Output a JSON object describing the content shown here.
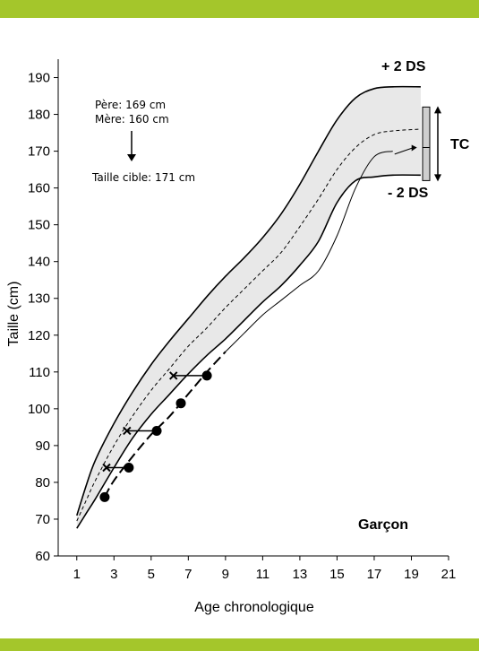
{
  "colors": {
    "band": "#a4c62b",
    "envelope": "#e8e8e8"
  },
  "chart_data": {
    "type": "line",
    "title": "",
    "xlabel": "Age chronologique",
    "ylabel": "Taille (cm)",
    "xlim": [
      0,
      21
    ],
    "ylim": [
      60,
      195
    ],
    "xticks": [
      1,
      3,
      5,
      7,
      9,
      11,
      13,
      15,
      17,
      19,
      21
    ],
    "yticks": [
      60,
      70,
      80,
      90,
      100,
      110,
      120,
      130,
      140,
      150,
      160,
      170,
      180,
      190
    ],
    "grid": false,
    "series": [
      {
        "role": "upper",
        "label": "+ 2 DS",
        "x": [
          1.0,
          1.5,
          2,
          3,
          4,
          5,
          6,
          7,
          8,
          9,
          10,
          11,
          12,
          13,
          14,
          15,
          16,
          17,
          18,
          19.5
        ],
        "y": [
          71,
          79,
          86,
          96,
          104.5,
          112,
          118.5,
          124.5,
          130.5,
          136,
          141,
          146.5,
          153,
          161,
          170,
          178.5,
          184.5,
          187,
          187.5,
          187.5
        ]
      },
      {
        "role": "mean",
        "label": "",
        "x": [
          1.0,
          1.5,
          2,
          3,
          4,
          5,
          6,
          7,
          8,
          9,
          10,
          11,
          12,
          13,
          14,
          15,
          16,
          17,
          18,
          19.5
        ],
        "y": [
          69.5,
          75,
          80.5,
          90,
          98,
          105,
          111,
          117,
          122,
          127.5,
          132.5,
          137.5,
          142.5,
          149.5,
          157,
          165,
          171,
          174.5,
          175.5,
          176
        ]
      },
      {
        "role": "lower",
        "label": "- 2 DS",
        "x": [
          1.0,
          1.5,
          2,
          3,
          4,
          5,
          6,
          7,
          8,
          9,
          10,
          11,
          12,
          13,
          14,
          15,
          16,
          17,
          18,
          19.5
        ],
        "y": [
          67.5,
          71.5,
          75.5,
          84,
          92,
          98.5,
          104,
          109.5,
          114.5,
          119,
          124,
          129,
          133.5,
          139,
          145.5,
          156,
          162,
          163,
          163.5,
          163.5
        ]
      },
      {
        "role": "patient",
        "label": "",
        "x": [
          2.5,
          3,
          4,
          5,
          6,
          7,
          8,
          9,
          10,
          11,
          12,
          13,
          14,
          15,
          16,
          17,
          18
        ],
        "y": [
          76,
          80.5,
          87,
          93,
          98,
          104,
          110,
          115.5,
          120.5,
          125.5,
          129.5,
          133.5,
          137.5,
          147,
          160,
          168.5,
          170
        ]
      }
    ],
    "points": {
      "chronological": [
        {
          "x": 2.5,
          "y": 76
        },
        {
          "x": 3.8,
          "y": 84
        },
        {
          "x": 5.3,
          "y": 94
        },
        {
          "x": 6.6,
          "y": 101.5
        },
        {
          "x": 8.0,
          "y": 109
        }
      ],
      "bone_age": [
        {
          "x": 2.6,
          "y": 84
        },
        {
          "x": 3.7,
          "y": 94
        },
        {
          "x": 6.2,
          "y": 109
        }
      ],
      "links": [
        {
          "from": [
            2.6,
            84
          ],
          "to": [
            3.8,
            84
          ]
        },
        {
          "from": [
            3.7,
            94
          ],
          "to": [
            5.3,
            94
          ]
        },
        {
          "from": [
            6.2,
            109
          ],
          "to": [
            8.0,
            109
          ]
        }
      ]
    },
    "target_range": {
      "min": 163,
      "max": 180,
      "target": 171,
      "label": "TC"
    },
    "annotations": {
      "parents_father": "Père: 169 cm",
      "parents_mother": "Mère: 160 cm",
      "target_height": "Taille cible: 171 cm",
      "plus_2ds": "+ 2 DS",
      "minus_2ds": "- 2 DS",
      "sex": "Garçon"
    }
  }
}
